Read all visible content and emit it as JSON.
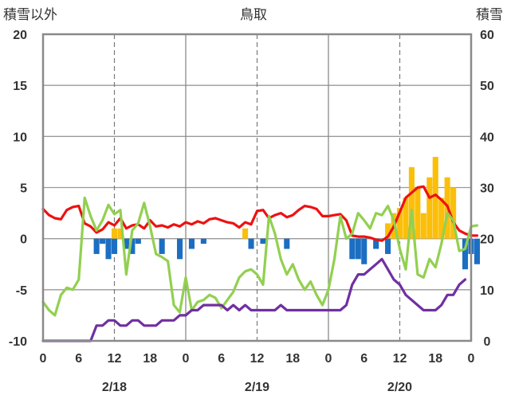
{
  "chart_data": {
    "type": "bar+line",
    "title": "鳥取",
    "ylabel_left": "積雪以外",
    "ylabel_right": "積雪",
    "ylim_left": [
      -10,
      20
    ],
    "yticks_left": [
      -10,
      -5,
      0,
      5,
      10,
      15,
      20
    ],
    "ylim_right": [
      0,
      60
    ],
    "yticks_right": [
      0,
      10,
      20,
      30,
      40,
      50,
      60
    ],
    "x_hour_ticks": [
      "0",
      "6",
      "12",
      "18",
      "0",
      "6",
      "12",
      "18",
      "0",
      "6",
      "12",
      "18",
      "0"
    ],
    "x_date_labels": [
      "2/18",
      "2/19",
      "2/20"
    ],
    "x_hours_total": 72,
    "grid": true,
    "series": [
      {
        "kind": "bar",
        "color": "#fbbf0a",
        "points": [
          [
            12,
            1
          ],
          [
            13,
            1
          ],
          [
            34,
            1
          ],
          [
            58,
            1.5
          ],
          [
            59,
            2.5
          ],
          [
            60,
            3
          ],
          [
            61,
            4
          ],
          [
            62,
            7
          ],
          [
            63,
            5
          ],
          [
            64,
            2.5
          ],
          [
            65,
            6
          ],
          [
            66,
            8
          ],
          [
            67,
            4
          ],
          [
            68,
            6
          ],
          [
            69,
            5
          ]
        ]
      },
      {
        "kind": "bar",
        "color": "#1b6ec2",
        "points": [
          [
            9,
            -1.5
          ],
          [
            10,
            -0.5
          ],
          [
            11,
            -2
          ],
          [
            12,
            -1.5
          ],
          [
            14,
            -1
          ],
          [
            15,
            -1.5
          ],
          [
            16,
            -0.5
          ],
          [
            20,
            -1.5
          ],
          [
            23,
            -2
          ],
          [
            25,
            -1
          ],
          [
            27,
            -0.5
          ],
          [
            35,
            -1
          ],
          [
            37,
            -0.5
          ],
          [
            41,
            -1
          ],
          [
            52,
            -2
          ],
          [
            53,
            -2
          ],
          [
            54,
            -2.5
          ],
          [
            56,
            -1
          ],
          [
            58,
            -1.5
          ],
          [
            71,
            -3
          ],
          [
            72,
            -1.5
          ],
          [
            73,
            -2.5
          ]
        ]
      },
      {
        "kind": "line",
        "color": "#ee1111",
        "axis": "left",
        "points": [
          [
            0,
            2.9
          ],
          [
            1,
            2.3
          ],
          [
            2,
            2.0
          ],
          [
            3,
            1.9
          ],
          [
            4,
            2.8
          ],
          [
            5,
            3.1
          ],
          [
            6,
            3.2
          ],
          [
            7,
            1.5
          ],
          [
            8,
            1.2
          ],
          [
            9,
            0.6
          ],
          [
            10,
            0.9
          ],
          [
            11,
            1.6
          ],
          [
            12,
            1.3
          ],
          [
            13,
            2.0
          ],
          [
            14,
            1.0
          ],
          [
            15,
            1.3
          ],
          [
            16,
            1.4
          ],
          [
            17,
            1.0
          ],
          [
            18,
            1.8
          ],
          [
            19,
            1.2
          ],
          [
            20,
            1.3
          ],
          [
            21,
            1.1
          ],
          [
            22,
            1.4
          ],
          [
            23,
            1.2
          ],
          [
            24,
            1.6
          ],
          [
            25,
            1.4
          ],
          [
            26,
            1.7
          ],
          [
            27,
            1.5
          ],
          [
            28,
            1.9
          ],
          [
            29,
            2.0
          ],
          [
            30,
            1.8
          ],
          [
            31,
            1.6
          ],
          [
            32,
            1.5
          ],
          [
            33,
            1.1
          ],
          [
            34,
            1.6
          ],
          [
            35,
            1.4
          ],
          [
            36,
            2.7
          ],
          [
            37,
            2.8
          ],
          [
            38,
            2.0
          ],
          [
            39,
            2.3
          ],
          [
            40,
            2.5
          ],
          [
            41,
            2.1
          ],
          [
            42,
            2.3
          ],
          [
            43,
            2.8
          ],
          [
            44,
            3.2
          ],
          [
            45,
            3.1
          ],
          [
            46,
            2.9
          ],
          [
            47,
            2.2
          ],
          [
            48,
            2.2
          ],
          [
            49,
            2.3
          ],
          [
            50,
            2.4
          ],
          [
            51,
            1.8
          ],
          [
            52,
            0.3
          ],
          [
            53,
            0.2
          ],
          [
            54,
            0.2
          ],
          [
            55,
            0.1
          ],
          [
            56,
            -0.1
          ],
          [
            57,
            -0.2
          ],
          [
            58,
            0.2
          ],
          [
            59,
            1.2
          ],
          [
            60,
            2.6
          ],
          [
            61,
            4.0
          ],
          [
            62,
            4.5
          ],
          [
            63,
            5.0
          ],
          [
            64,
            5.1
          ],
          [
            65,
            4.0
          ],
          [
            66,
            4.3
          ],
          [
            67,
            3.8
          ],
          [
            68,
            3.2
          ],
          [
            69,
            1.6
          ],
          [
            70,
            0.8
          ],
          [
            71,
            0.5
          ],
          [
            72,
            0.3
          ],
          [
            73,
            0.3
          ]
        ]
      },
      {
        "kind": "line",
        "color": "#92d050",
        "axis": "left",
        "points": [
          [
            0,
            -6.2
          ],
          [
            1,
            -7.0
          ],
          [
            2,
            -7.5
          ],
          [
            3,
            -5.5
          ],
          [
            4,
            -4.8
          ],
          [
            5,
            -5.0
          ],
          [
            6,
            -4.0
          ],
          [
            7,
            4.0
          ],
          [
            8,
            2.2
          ],
          [
            9,
            0.8
          ],
          [
            10,
            1.8
          ],
          [
            11,
            3.3
          ],
          [
            12,
            2.4
          ],
          [
            13,
            2.8
          ],
          [
            14,
            -3.5
          ],
          [
            15,
            0.8
          ],
          [
            16,
            1.5
          ],
          [
            17,
            3.5
          ],
          [
            18,
            1.2
          ],
          [
            19,
            -1.5
          ],
          [
            20,
            -1.8
          ],
          [
            21,
            -2.2
          ],
          [
            22,
            -6.5
          ],
          [
            23,
            -7.2
          ],
          [
            24,
            -3.8
          ],
          [
            25,
            -7.0
          ],
          [
            26,
            -6.2
          ],
          [
            27,
            -6.0
          ],
          [
            28,
            -5.5
          ],
          [
            29,
            -5.8
          ],
          [
            30,
            -6.8
          ],
          [
            31,
            -6.0
          ],
          [
            32,
            -5.2
          ],
          [
            33,
            -3.8
          ],
          [
            34,
            -3.2
          ],
          [
            35,
            -3.0
          ],
          [
            36,
            -3.5
          ],
          [
            37,
            -4.5
          ],
          [
            38,
            2.2
          ],
          [
            39,
            0.5
          ],
          [
            40,
            -2.0
          ],
          [
            41,
            -3.5
          ],
          [
            42,
            -2.5
          ],
          [
            43,
            -4.0
          ],
          [
            44,
            -5.0
          ],
          [
            45,
            -4.2
          ],
          [
            46,
            -5.5
          ],
          [
            47,
            -6.5
          ],
          [
            48,
            -5.0
          ],
          [
            49,
            -2.0
          ],
          [
            50,
            2.2
          ],
          [
            51,
            0.0
          ],
          [
            52,
            0.5
          ],
          [
            53,
            2.5
          ],
          [
            54,
            1.8
          ],
          [
            55,
            1.0
          ],
          [
            56,
            2.5
          ],
          [
            57,
            2.3
          ],
          [
            58,
            3.2
          ],
          [
            59,
            1.8
          ],
          [
            60,
            -1.0
          ],
          [
            61,
            -3.0
          ],
          [
            62,
            2.8
          ],
          [
            63,
            -3.5
          ],
          [
            64,
            -3.8
          ],
          [
            65,
            -2.0
          ],
          [
            66,
            -2.8
          ],
          [
            67,
            -0.5
          ],
          [
            68,
            2.5
          ],
          [
            69,
            1.8
          ],
          [
            70,
            -1.2
          ],
          [
            71,
            -1.0
          ],
          [
            72,
            1.2
          ],
          [
            73,
            1.3
          ]
        ]
      },
      {
        "kind": "line",
        "color": "#7030a0",
        "axis": "right",
        "points": [
          [
            0,
            0
          ],
          [
            1,
            0
          ],
          [
            2,
            0
          ],
          [
            3,
            0
          ],
          [
            4,
            0
          ],
          [
            5,
            0
          ],
          [
            6,
            0
          ],
          [
            7,
            0
          ],
          [
            8,
            0
          ],
          [
            9,
            3
          ],
          [
            10,
            3
          ],
          [
            11,
            4
          ],
          [
            12,
            4
          ],
          [
            13,
            3
          ],
          [
            14,
            3
          ],
          [
            15,
            4
          ],
          [
            16,
            4
          ],
          [
            17,
            3
          ],
          [
            18,
            3
          ],
          [
            19,
            3
          ],
          [
            20,
            4
          ],
          [
            21,
            4
          ],
          [
            22,
            4
          ],
          [
            23,
            5
          ],
          [
            24,
            5
          ],
          [
            25,
            6
          ],
          [
            26,
            6
          ],
          [
            27,
            7
          ],
          [
            28,
            7
          ],
          [
            29,
            7
          ],
          [
            30,
            7
          ],
          [
            31,
            6
          ],
          [
            32,
            7
          ],
          [
            33,
            6
          ],
          [
            34,
            7
          ],
          [
            35,
            6
          ],
          [
            36,
            6
          ],
          [
            37,
            6
          ],
          [
            38,
            6
          ],
          [
            39,
            6
          ],
          [
            40,
            7
          ],
          [
            41,
            6
          ],
          [
            42,
            6
          ],
          [
            43,
            6
          ],
          [
            44,
            6
          ],
          [
            45,
            6
          ],
          [
            46,
            6
          ],
          [
            47,
            6
          ],
          [
            48,
            6
          ],
          [
            49,
            6
          ],
          [
            50,
            6
          ],
          [
            51,
            7
          ],
          [
            52,
            11
          ],
          [
            53,
            13
          ],
          [
            54,
            13
          ],
          [
            55,
            14
          ],
          [
            56,
            15
          ],
          [
            57,
            16
          ],
          [
            58,
            14
          ],
          [
            59,
            12
          ],
          [
            60,
            11
          ],
          [
            61,
            9
          ],
          [
            62,
            8
          ],
          [
            63,
            7
          ],
          [
            64,
            6
          ],
          [
            65,
            6
          ],
          [
            66,
            6
          ],
          [
            67,
            7
          ],
          [
            68,
            9
          ],
          [
            69,
            9
          ],
          [
            70,
            11
          ],
          [
            71,
            12
          ]
        ]
      }
    ]
  }
}
